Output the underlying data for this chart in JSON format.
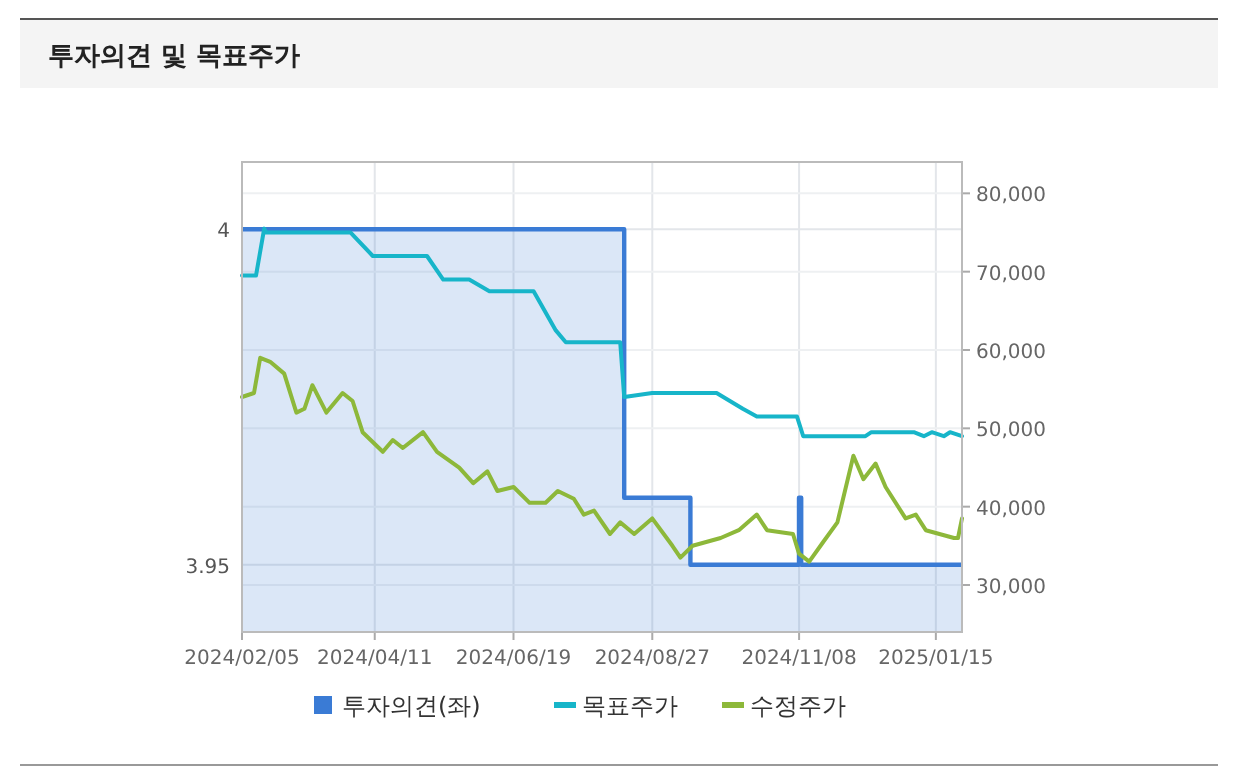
{
  "chart_data": {
    "type": "line",
    "title": "투자의견 및 목표주가",
    "xlim": [
      "2024-02-05",
      "2025-01-28"
    ],
    "xticks": [
      {
        "value": "2024-02-05",
        "label": "2024/02/05"
      },
      {
        "value": "2024-04-11",
        "label": "2024/04/11"
      },
      {
        "value": "2024-06-19",
        "label": "2024/06/19"
      },
      {
        "value": "2024-08-27",
        "label": "2024/08/27"
      },
      {
        "value": "2024-11-08",
        "label": "2024/11/08"
      },
      {
        "value": "2025-01-15",
        "label": "2025/01/15"
      }
    ],
    "ylim": [
      3.94,
      4.01
    ],
    "yticks": [
      3.95,
      4
    ],
    "y2lim": [
      24000,
      84000
    ],
    "y2ticks": [
      {
        "value": 30000,
        "label": "30,000"
      },
      {
        "value": 40000,
        "label": "40,000"
      },
      {
        "value": 50000,
        "label": "50,000"
      },
      {
        "value": 60000,
        "label": "60,000"
      },
      {
        "value": 70000,
        "label": "70,000"
      },
      {
        "value": 80000,
        "label": "80,000"
      }
    ],
    "grid": true,
    "legend": "bottom",
    "series": [
      {
        "name": "투자의견(좌)",
        "type": "area",
        "color": "#3a7bd5",
        "x": [
          "2024-02-05",
          "2024-08-13",
          "2024-08-13",
          "2024-09-15",
          "2024-09-15",
          "2024-11-08",
          "2024-11-08",
          "2024-11-09",
          "2024-11-09",
          "2025-01-28"
        ],
        "values": [
          4,
          4,
          3.96,
          3.96,
          3.95,
          3.95,
          3.96,
          3.96,
          3.95,
          3.95
        ]
      },
      {
        "name": "목표주가",
        "axis": "y2",
        "color": "#17b5c9",
        "x": [
          "2024-02-05",
          "2024-02-12",
          "2024-02-16",
          "2024-02-17",
          "2024-03-30",
          "2024-04-10",
          "2024-05-07",
          "2024-05-15",
          "2024-05-28",
          "2024-06-07",
          "2024-06-29",
          "2024-07-10",
          "2024-07-15",
          "2024-08-11",
          "2024-08-13",
          "2024-08-27",
          "2024-09-28",
          "2024-10-11",
          "2024-10-18",
          "2024-11-07",
          "2024-11-10",
          "2024-12-11",
          "2024-12-14",
          "2025-01-04",
          "2025-01-09",
          "2025-01-13",
          "2025-01-19",
          "2025-01-22",
          "2025-01-28"
        ],
        "values": [
          69500,
          69500,
          75500,
          75000,
          75000,
          72000,
          72000,
          69000,
          69000,
          67500,
          67500,
          62500,
          61000,
          61000,
          54000,
          54500,
          54500,
          52500,
          51500,
          51500,
          49000,
          49000,
          49500,
          49500,
          49000,
          49500,
          49000,
          49500,
          49000
        ]
      },
      {
        "name": "수정주가",
        "axis": "y2",
        "color": "#8db83a",
        "x": [
          "2024-02-05",
          "2024-02-11",
          "2024-02-14",
          "2024-02-19",
          "2024-02-26",
          "2024-03-03",
          "2024-03-07",
          "2024-03-11",
          "2024-03-18",
          "2024-03-26",
          "2024-03-31",
          "2024-04-05",
          "2024-04-15",
          "2024-04-20",
          "2024-04-25",
          "2024-05-05",
          "2024-05-12",
          "2024-05-23",
          "2024-05-30",
          "2024-06-06",
          "2024-06-11",
          "2024-06-19",
          "2024-06-27",
          "2024-07-05",
          "2024-07-11",
          "2024-07-19",
          "2024-07-24",
          "2024-07-29",
          "2024-08-06",
          "2024-08-11",
          "2024-08-18",
          "2024-08-27",
          "2024-09-06",
          "2024-09-10",
          "2024-09-16",
          "2024-09-30",
          "2024-10-09",
          "2024-10-18",
          "2024-10-23",
          "2024-11-05",
          "2024-11-08",
          "2024-11-13",
          "2024-11-20",
          "2024-11-27",
          "2024-12-05",
          "2024-12-10",
          "2024-12-16",
          "2024-12-21",
          "2024-12-31",
          "2025-01-05",
          "2025-01-10",
          "2025-01-24",
          "2025-01-26",
          "2025-01-28"
        ],
        "values": [
          54000,
          54500,
          59000,
          58500,
          57000,
          52000,
          52500,
          55500,
          52000,
          54500,
          53500,
          49500,
          47000,
          48500,
          47500,
          49500,
          47000,
          45000,
          43000,
          44500,
          42000,
          42500,
          40500,
          40500,
          42000,
          41000,
          39000,
          39500,
          36500,
          38000,
          36500,
          38500,
          35000,
          33500,
          35000,
          36000,
          37000,
          39000,
          37000,
          36500,
          34000,
          33000,
          35500,
          38000,
          46500,
          43500,
          45500,
          42500,
          38500,
          39000,
          37000,
          36000,
          36000,
          38500
        ]
      }
    ]
  }
}
